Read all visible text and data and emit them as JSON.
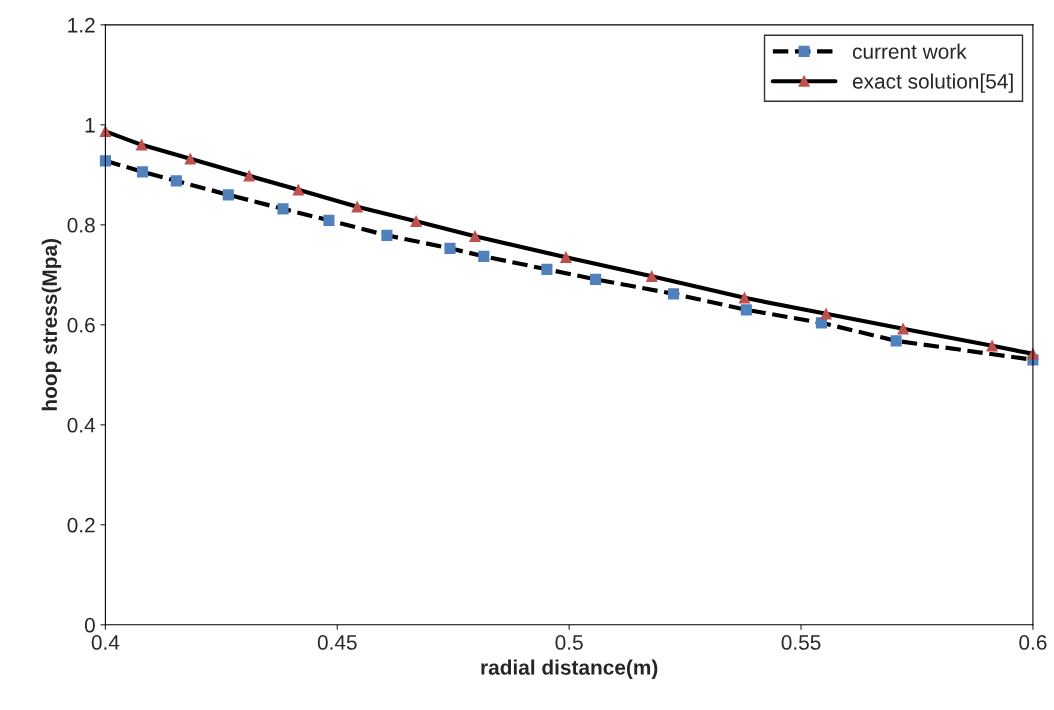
{
  "chart_data": {
    "type": "line",
    "xlabel": "radial distance(m)",
    "ylabel": "hoop stress(Mpa)",
    "xlim": [
      0.4,
      0.6
    ],
    "xticks": [
      0.4,
      0.45,
      0.5,
      0.55,
      0.6
    ],
    "ylim": [
      0,
      1.2
    ],
    "yticks": [
      0,
      0.2,
      0.4,
      0.6,
      0.8,
      1,
      1.2
    ],
    "grid": false,
    "legend": "top right",
    "series": [
      {
        "name": "current work",
        "color": "#4f81bd",
        "marker": "square",
        "line_style": "dashed",
        "x": [
          0.4,
          0.408,
          0.4153,
          0.4265,
          0.4383,
          0.4482,
          0.4607,
          0.4743,
          0.4816,
          0.4952,
          0.5057,
          0.5225,
          0.5382,
          0.5544,
          0.5705,
          0.6
        ],
        "values": [
          0.928,
          0.906,
          0.888,
          0.86,
          0.832,
          0.809,
          0.779,
          0.753,
          0.737,
          0.711,
          0.691,
          0.662,
          0.63,
          0.604,
          0.568,
          0.53
        ]
      },
      {
        "name": "exact solution[54]",
        "color": "#c0504d",
        "marker": "triangle",
        "line_style": "solid",
        "x": [
          0.4,
          0.4078,
          0.4183,
          0.431,
          0.4416,
          0.4543,
          0.467,
          0.4797,
          0.4993,
          0.5178,
          0.5378,
          0.5554,
          0.572,
          0.5912,
          0.6
        ],
        "values": [
          0.987,
          0.96,
          0.932,
          0.898,
          0.87,
          0.836,
          0.807,
          0.777,
          0.735,
          0.697,
          0.654,
          0.622,
          0.592,
          0.558,
          0.542
        ]
      }
    ]
  }
}
